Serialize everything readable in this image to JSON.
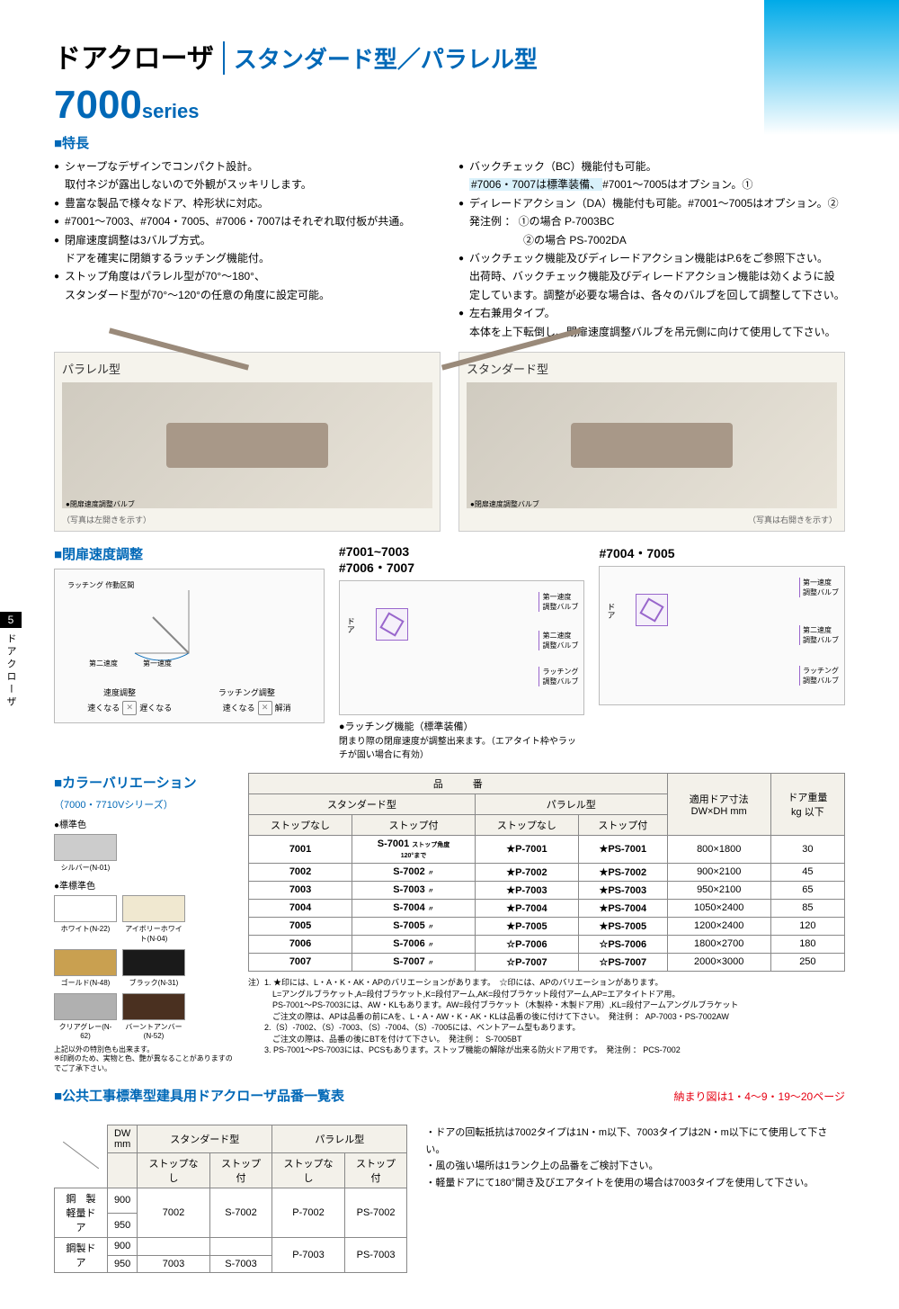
{
  "page_number": "5",
  "side_label": "ドアクローザ",
  "header": {
    "title": "ドアクローザ",
    "subtitle": "スタンダード型／パラレル型",
    "series": "7000",
    "series_suffix": "series"
  },
  "features": {
    "label": "■特長",
    "left": [
      "シャープなデザインでコンパクト設計。\n取付ネジが露出しないので外観がスッキリします。",
      "豊富な製品で様々なドア、枠形状に対応。",
      "#7001～7003、#7004・7005、#7006・7007はそれぞれ取付板が共通。",
      "閉扉速度調整は3バルブ方式。\nドアを確実に閉鎖するラッチング機能付。",
      "ストップ角度はパラレル型が70°～180°、\nスタンダード型が70°～120°の任意の角度に設定可能。"
    ],
    "right": [
      {
        "text": "バックチェック（BC）機能付も可能。",
        "sub_highlight": "#7006・7007は標準装備、",
        "sub_rest": "#7001～7005はオプション。①"
      },
      {
        "text": "ディレードアクション（DA）機能付も可能。#7001～7005はオプション。②\n発注例 ： ①の場合 P-7003BC\n　　　　　②の場合 PS-7002DA"
      },
      {
        "text": "バックチェック機能及びディレードアクション機能はP.6をご参照下さい。\n出荷時、バックチェック機能及びディレードアクション機能は効くように設定しています。調整が必要な場合は、各々のバルブを回して調整して下さい。"
      },
      {
        "text": "左右兼用タイプ。\n本体を上下転倒し、閉扉速度調整バルブを吊元側に向けて使用して下さい。"
      }
    ]
  },
  "photos": {
    "left": {
      "label": "パラレル型",
      "caption": "●閉扉速度調整バルブ",
      "note": "（写真は左開きを示す）"
    },
    "right": {
      "label": "スタンダード型",
      "caption": "●閉扉速度調整バルブ",
      "note": "（写真は右開きを示す）"
    }
  },
  "speed_adjust": {
    "label": "■閉扉速度調整",
    "txt_latching": "ラッチング\n作動区間",
    "txt_speed2": "第二速度",
    "txt_speed1": "第一速度",
    "txt_speed_adj": "速度調整",
    "txt_latch_adj": "ラッチング調整",
    "txt_fast": "速くなる",
    "txt_slow": "遅くなる",
    "txt_release": "解消"
  },
  "valve_diagrams": {
    "group1_title": "#7001~7003\n#7006・7007",
    "group2_title": "#7004・7005",
    "door_label": "ドア",
    "v1": "第一速度\n調整バルブ",
    "v2": "第二速度\n調整バルブ",
    "v3": "ラッチング\n調整バルブ",
    "latching_label": "●ラッチング機能（標準装備）",
    "latching_note": "閉まり際の閉扉速度が調整出来ます。（エアタイト枠やラッチが固い場合に有効）"
  },
  "colors": {
    "label": "■カラーバリエーション",
    "sub": "（7000・7710Vシリーズ）",
    "group_std": "●標準色",
    "group_semi": "●準標準色",
    "swatches_std": [
      {
        "name": "シルバー(N-01)",
        "color": "#cccccc"
      }
    ],
    "swatches_semi": [
      {
        "name": "ホワイト(N-22)",
        "color": "#ffffff"
      },
      {
        "name": "アイボリーホワイト(N-04)",
        "color": "#f0e8d0"
      },
      {
        "name": "ゴールド(N-48)",
        "color": "#c9a050"
      },
      {
        "name": "ブラック(N-31)",
        "color": "#1a1a1a"
      },
      {
        "name": "クリアグレー(N-62)",
        "color": "#b0b0b0"
      },
      {
        "name": "バーントアンバー(N-52)",
        "color": "#4a3020"
      }
    ],
    "color_note": "上記以外の特別色も出来ます。\n※印刷のため、実物と色、艶が異なることがありますのでご了承下さい。"
  },
  "product_table": {
    "header_model": "品　　　番",
    "header_std": "スタンダード型",
    "header_para": "パラレル型",
    "header_ns": "ストップなし",
    "header_ws": "ストップ付",
    "header_size": "適用ドア寸法\nDW×DH mm",
    "header_weight": "ドア重量\nkg 以下",
    "stop_note": "ストップ角度\n120°まで",
    "rows": [
      {
        "m1": "7001",
        "m2": "S-7001",
        "m3": "★P-7001",
        "m4": "★PS-7001",
        "size": "800×1800",
        "weight": "30",
        "note": true
      },
      {
        "m1": "7002",
        "m2": "S-7002",
        "m3": "★P-7002",
        "m4": "★PS-7002",
        "size": "900×2100",
        "weight": "45",
        "note": false
      },
      {
        "m1": "7003",
        "m2": "S-7003",
        "m3": "★P-7003",
        "m4": "★PS-7003",
        "size": "950×2100",
        "weight": "65",
        "note": false
      },
      {
        "m1": "7004",
        "m2": "S-7004",
        "m3": "★P-7004",
        "m4": "★PS-7004",
        "size": "1050×2400",
        "weight": "85",
        "note": false
      },
      {
        "m1": "7005",
        "m2": "S-7005",
        "m3": "★P-7005",
        "m4": "★PS-7005",
        "size": "1200×2400",
        "weight": "120",
        "note": false
      },
      {
        "m1": "7006",
        "m2": "S-7006",
        "m3": "☆P-7006",
        "m4": "☆PS-7006",
        "size": "1800×2700",
        "weight": "180",
        "note": false
      },
      {
        "m1": "7007",
        "m2": "S-7007",
        "m3": "☆P-7007",
        "m4": "☆PS-7007",
        "size": "2000×3000",
        "weight": "250",
        "note": false
      }
    ],
    "notes": [
      "注）1. ★印には、L・A・K・AK・APのバリエーションがあります。　☆印には、APのバリエーションがあります。",
      "　　　L=アングルブラケット,A=段付ブラケット,K=段付アーム,AK=段付ブラケット段付アーム,AP=エアタイトドア用。",
      "　　　PS-7001～PS-7003には、AW・KLもあります。AW=段付ブラケット（木製枠・木製ドア用）,KL=段付アームアングルブラケット",
      "　　　ご注文の際は、APは品番の前にAを、L・A・AW・K・AK・KLは品番の後に付けて下さい。　発注例 ： AP-7003・PS-7002AW",
      "　　2.（S）-7002、（S）-7003、（S）-7004、（S）-7005には、ベントアーム型もあります。",
      "　　　ご注文の際は、品番の後にBTを付けて下さい。　発注例 ： S-7005BT",
      "　　3. PS-7001～PS-7003には、PCSもあります。ストップ機能の解除が出来る防火ドア用です。　発注例 ： PCS-7002"
    ]
  },
  "public": {
    "label": "■公共工事標準型建具用ドアクローザ品番一覧表",
    "page_ref": "納まり図は1・4～9・19～20ページ",
    "headers": {
      "dw": "DW\nmm",
      "std": "スタンダード型",
      "para": "パラレル型",
      "ns": "ストップなし",
      "ws": "ストップ付"
    },
    "row_labels": {
      "r1": "鋼　製\n軽量ドア",
      "r2": "鋼製ドア"
    },
    "rows": [
      {
        "label": "row1",
        "dw": "900",
        "sns": "",
        "sws": "",
        "pns": "P-7002",
        "pws": "PS-7002",
        "rowspan_s": true,
        "snsv": "7002",
        "swsv": "S-7002"
      },
      {
        "label": "row2",
        "dw": "950"
      },
      {
        "label": "row3",
        "dw": "900",
        "pns": "P-7003",
        "pws": "PS-7003"
      },
      {
        "label": "row4",
        "dw": "950",
        "sns": "7003",
        "sws": "S-7003"
      }
    ],
    "notes": [
      "・ドアの回転抵抗は7002タイプは1N・m以下、7003タイプは2N・m以下にて使用して下さい。",
      "・風の強い場所は1ランク上の品番をご検討下さい。",
      "・軽量ドアにて180°開き及びエアタイトを使用の場合は7003タイプを使用して下さい。"
    ]
  }
}
